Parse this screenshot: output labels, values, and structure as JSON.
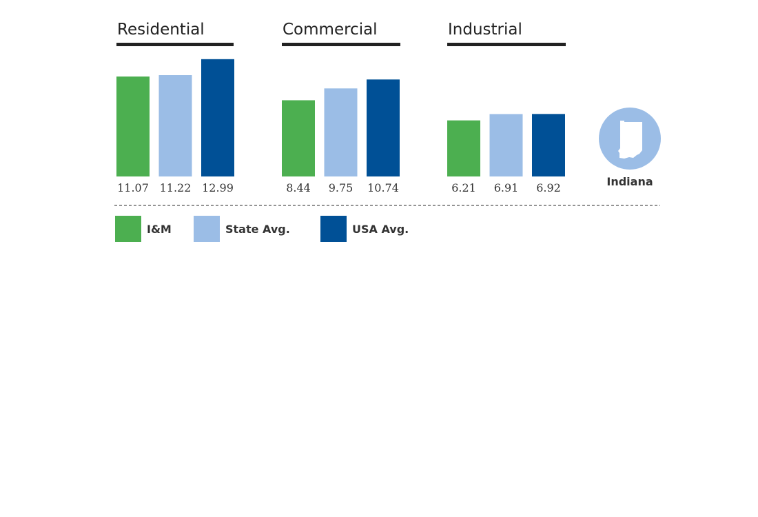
{
  "chart_data": {
    "type": "bar",
    "groups": [
      "Residential",
      "Commercial",
      "Industrial"
    ],
    "series": [
      {
        "name": "I&M",
        "color": "#4caf50",
        "values": [
          11.07,
          8.44,
          6.21
        ]
      },
      {
        "name": "State Avg.",
        "color": "#9bbde6",
        "values": [
          11.22,
          9.75,
          6.91
        ]
      },
      {
        "name": "USA Avg.",
        "color": "#005096",
        "values": [
          12.99,
          10.74,
          6.92
        ]
      }
    ],
    "value_labels": [
      [
        "11.07",
        "11.22",
        "12.99"
      ],
      [
        "8.44",
        "9.75",
        "10.74"
      ],
      [
        "6.21",
        "6.91",
        "6.92"
      ]
    ],
    "legend_position": "bottom-left",
    "grid": false
  },
  "state": {
    "name": "Indiana",
    "icon": "indiana-state-icon",
    "circle_color": "#9bbde6"
  },
  "colors": {
    "title_underline": "#222222",
    "divider": "#555555"
  }
}
